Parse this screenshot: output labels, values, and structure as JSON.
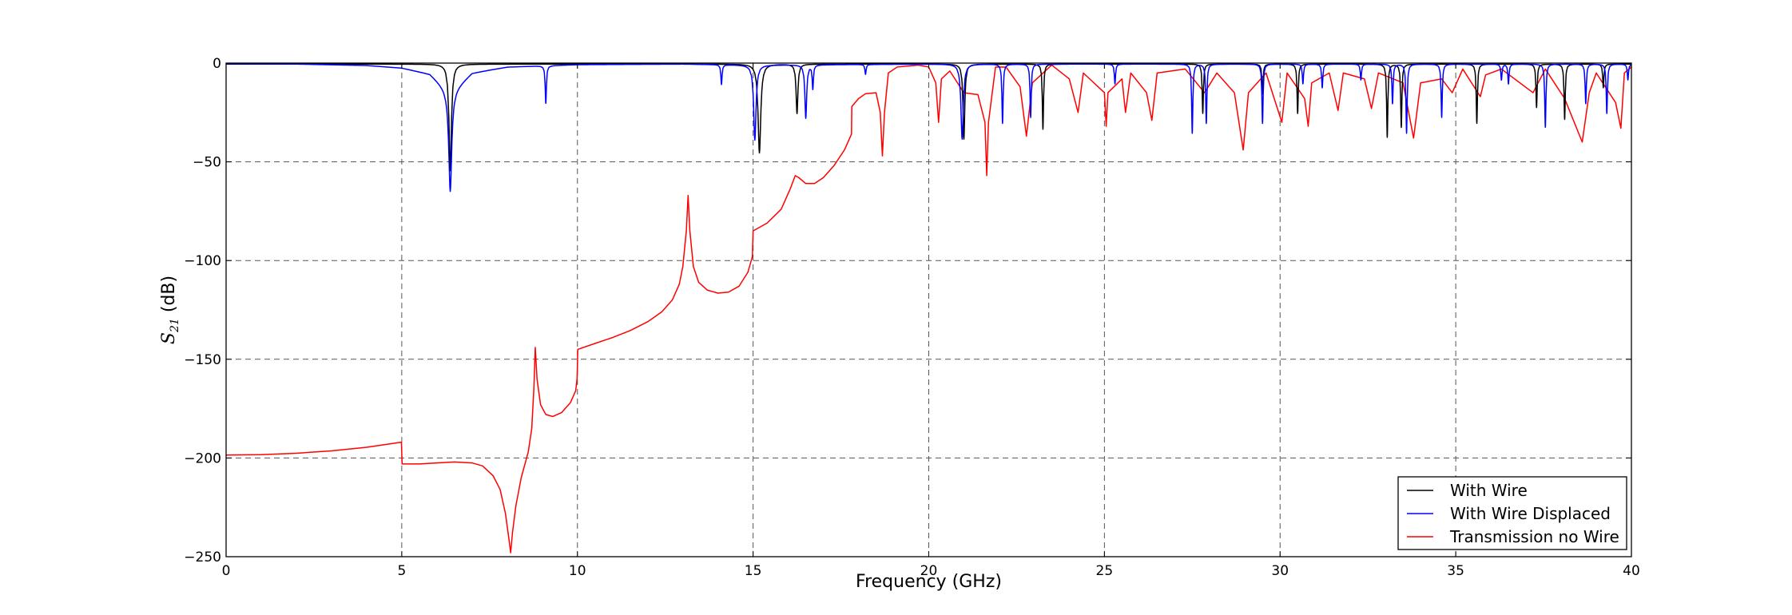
{
  "chart_data": {
    "type": "line",
    "title": "",
    "xlabel": "Frequency (GHz)",
    "ylabel_main": "S",
    "ylabel_sub": "21",
    "ylabel_unit": " (dB)",
    "xlim": [
      0,
      40
    ],
    "ylim": [
      -250,
      0
    ],
    "xticks": [
      0,
      5,
      10,
      15,
      20,
      25,
      30,
      35,
      40
    ],
    "yticks": [
      0,
      -50,
      -100,
      -150,
      -200,
      -250
    ],
    "grid": true,
    "legend_position": "bottom-right",
    "series": [
      {
        "name": "With Wire",
        "color": "#000000",
        "baseline": [
          [
            0,
            -0.5
          ],
          [
            40,
            -0.5
          ]
        ],
        "dips": [
          [
            6.38,
            -54,
            0.04
          ],
          [
            15.18,
            -45,
            0.045
          ],
          [
            16.25,
            -25,
            0.03
          ],
          [
            21.0,
            -38,
            0.03
          ],
          [
            23.25,
            -33,
            0.02
          ],
          [
            27.8,
            -25,
            0.02
          ],
          [
            29.5,
            -15,
            0.02
          ],
          [
            30.5,
            -25,
            0.02
          ],
          [
            33.05,
            -37,
            0.02
          ],
          [
            33.45,
            -32,
            0.02
          ],
          [
            35.6,
            -30,
            0.02
          ],
          [
            37.3,
            -22,
            0.02
          ],
          [
            38.1,
            -28,
            0.02
          ],
          [
            39.2,
            -12,
            0.02
          ]
        ]
      },
      {
        "name": "With Wire Displaced",
        "color": "#0000ff",
        "baseline": [
          [
            0,
            -0.3
          ],
          [
            2,
            -0.5
          ],
          [
            4,
            -1.2
          ],
          [
            5,
            -2.5
          ],
          [
            5.8,
            -5.5
          ],
          [
            6.38,
            -15
          ],
          [
            7,
            -5
          ],
          [
            8,
            -2
          ],
          [
            10,
            -0.8
          ],
          [
            13,
            -0.5
          ],
          [
            15,
            -1
          ],
          [
            17,
            -0.8
          ],
          [
            20,
            -0.5
          ],
          [
            40,
            -0.5
          ]
        ],
        "dips": [
          [
            6.38,
            -50,
            0.05
          ],
          [
            9.1,
            -19,
            0.02
          ],
          [
            14.1,
            -10,
            0.02
          ],
          [
            15.05,
            -38,
            0.04
          ],
          [
            16.5,
            -27,
            0.03
          ],
          [
            16.7,
            -12,
            0.02
          ],
          [
            18.2,
            -5,
            0.02
          ],
          [
            20.95,
            -38,
            0.04
          ],
          [
            22.1,
            -30,
            0.02
          ],
          [
            22.9,
            -27,
            0.02
          ],
          [
            25.3,
            -10,
            0.02
          ],
          [
            27.5,
            -35,
            0.02
          ],
          [
            27.9,
            -30,
            0.02
          ],
          [
            29.5,
            -30,
            0.02
          ],
          [
            30.65,
            -10,
            0.02
          ],
          [
            31.2,
            -12,
            0.02
          ],
          [
            32.3,
            -8,
            0.02
          ],
          [
            33.2,
            -20,
            0.02
          ],
          [
            33.6,
            -35,
            0.02
          ],
          [
            34.6,
            -27,
            0.02
          ],
          [
            36.3,
            -8,
            0.02
          ],
          [
            36.5,
            -10,
            0.02
          ],
          [
            37.55,
            -32,
            0.02
          ],
          [
            38.7,
            -20,
            0.02
          ],
          [
            39.3,
            -25,
            0.02
          ],
          [
            39.9,
            -8,
            0.02
          ]
        ]
      },
      {
        "name": "Transmission no Wire",
        "color": "#ff0000",
        "points": [
          [
            0,
            -198.5
          ],
          [
            1,
            -198.3
          ],
          [
            2,
            -197.6
          ],
          [
            3,
            -196.4
          ],
          [
            4,
            -194.6
          ],
          [
            4.99,
            -192
          ],
          [
            5.01,
            -203
          ],
          [
            5.5,
            -203
          ],
          [
            6,
            -202.5
          ],
          [
            6.5,
            -202
          ],
          [
            7,
            -202.5
          ],
          [
            7.3,
            -204
          ],
          [
            7.6,
            -209
          ],
          [
            7.8,
            -216
          ],
          [
            7.95,
            -228
          ],
          [
            8.05,
            -241
          ],
          [
            8.1,
            -248
          ],
          [
            8.15,
            -238
          ],
          [
            8.25,
            -224
          ],
          [
            8.4,
            -210
          ],
          [
            8.6,
            -197
          ],
          [
            8.7,
            -185
          ],
          [
            8.76,
            -165
          ],
          [
            8.8,
            -144
          ],
          [
            8.85,
            -160
          ],
          [
            8.95,
            -173
          ],
          [
            9.1,
            -178
          ],
          [
            9.3,
            -179
          ],
          [
            9.55,
            -177
          ],
          [
            9.8,
            -172
          ],
          [
            9.95,
            -166
          ],
          [
            9.99,
            -160
          ],
          [
            10.01,
            -145
          ],
          [
            10.5,
            -142
          ],
          [
            11,
            -139
          ],
          [
            11.5,
            -135.5
          ],
          [
            12,
            -131
          ],
          [
            12.4,
            -126
          ],
          [
            12.7,
            -120
          ],
          [
            12.9,
            -112
          ],
          [
            13.0,
            -103
          ],
          [
            13.1,
            -85
          ],
          [
            13.15,
            -67
          ],
          [
            13.2,
            -85
          ],
          [
            13.3,
            -103
          ],
          [
            13.45,
            -111
          ],
          [
            13.7,
            -115
          ],
          [
            14,
            -116.5
          ],
          [
            14.3,
            -116
          ],
          [
            14.6,
            -113
          ],
          [
            14.85,
            -106
          ],
          [
            14.98,
            -98
          ],
          [
            15.0,
            -85
          ],
          [
            15.4,
            -81
          ],
          [
            15.8,
            -74
          ],
          [
            16.05,
            -64
          ],
          [
            16.2,
            -57
          ],
          [
            16.3,
            -58
          ],
          [
            16.5,
            -61
          ],
          [
            16.75,
            -61
          ],
          [
            17.0,
            -58
          ],
          [
            17.3,
            -52
          ],
          [
            17.6,
            -44
          ],
          [
            17.8,
            -36
          ],
          [
            17.81,
            -22
          ],
          [
            18.0,
            -18
          ],
          [
            18.2,
            -15.5
          ],
          [
            18.5,
            -15
          ],
          [
            18.62,
            -25
          ],
          [
            18.68,
            -47
          ],
          [
            18.74,
            -25
          ],
          [
            18.85,
            -5
          ],
          [
            19.1,
            -2
          ],
          [
            19.7,
            -1
          ],
          [
            20,
            -2
          ],
          [
            20.2,
            -10
          ],
          [
            20.28,
            -30
          ],
          [
            20.36,
            -8
          ],
          [
            20.6,
            -4
          ],
          [
            21.0,
            -15
          ],
          [
            21.4,
            -16
          ],
          [
            21.6,
            -30
          ],
          [
            21.65,
            -57
          ],
          [
            21.7,
            -30
          ],
          [
            21.9,
            -2
          ],
          [
            22.2,
            -2
          ],
          [
            22.6,
            -12
          ],
          [
            22.78,
            -37
          ],
          [
            22.95,
            -10
          ],
          [
            23.5,
            -1
          ],
          [
            24.0,
            -8
          ],
          [
            24.25,
            -25
          ],
          [
            24.4,
            -5
          ],
          [
            25.0,
            -15
          ],
          [
            25.05,
            -32
          ],
          [
            25.1,
            -15
          ],
          [
            25.5,
            -8
          ],
          [
            25.6,
            -25
          ],
          [
            25.75,
            -5
          ],
          [
            26.2,
            -15
          ],
          [
            26.35,
            -29
          ],
          [
            26.5,
            -5
          ],
          [
            27.3,
            -3
          ],
          [
            27.85,
            -15
          ],
          [
            28.2,
            -5
          ],
          [
            28.7,
            -15
          ],
          [
            28.95,
            -44
          ],
          [
            29.1,
            -15
          ],
          [
            29.6,
            -5
          ],
          [
            30.05,
            -30
          ],
          [
            30.2,
            -5
          ],
          [
            30.7,
            -18
          ],
          [
            30.8,
            -32
          ],
          [
            30.9,
            -10
          ],
          [
            31.4,
            -5
          ],
          [
            31.65,
            -24
          ],
          [
            31.8,
            -5
          ],
          [
            32.4,
            -8
          ],
          [
            32.6,
            -23
          ],
          [
            32.8,
            -5
          ],
          [
            33.5,
            -10
          ],
          [
            33.8,
            -38
          ],
          [
            34.0,
            -10
          ],
          [
            34.6,
            -8
          ],
          [
            34.9,
            -15
          ],
          [
            35.2,
            -3
          ],
          [
            35.7,
            -17
          ],
          [
            35.85,
            -6
          ],
          [
            36.3,
            -3
          ],
          [
            37.2,
            -15
          ],
          [
            37.55,
            -3
          ],
          [
            38.1,
            -18
          ],
          [
            38.6,
            -40
          ],
          [
            38.8,
            -15
          ],
          [
            39.0,
            -5
          ],
          [
            39.55,
            -20
          ],
          [
            39.7,
            -33
          ],
          [
            39.8,
            -5
          ],
          [
            40,
            -2
          ]
        ]
      }
    ]
  }
}
